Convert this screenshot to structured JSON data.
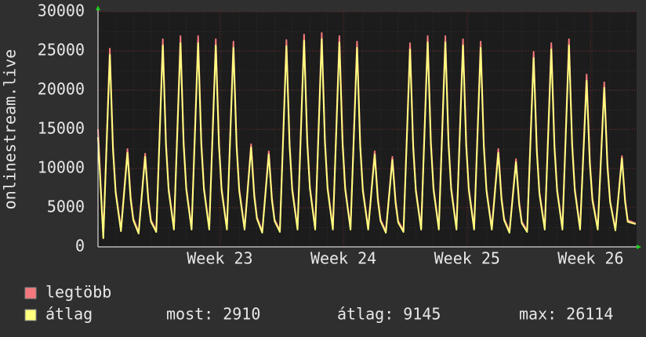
{
  "chart_data": {
    "type": "line",
    "y_label": "onlinestream.live",
    "x": [
      0,
      0.3,
      0.67,
      0.85,
      1,
      1.3,
      1.67,
      1.85,
      2,
      2.3,
      2.67,
      2.85,
      3,
      3.3,
      3.67,
      3.85,
      4,
      4.3,
      4.67,
      4.85,
      5,
      5.3,
      5.67,
      5.85,
      6,
      6.3,
      6.67,
      6.85,
      7,
      7.3,
      7.67,
      7.85,
      8,
      8.3,
      8.67,
      8.85,
      9,
      9.3,
      9.67,
      9.85,
      10,
      10.3,
      10.67,
      10.85,
      11,
      11.3,
      11.67,
      11.85,
      12,
      12.3,
      12.67,
      12.85,
      13,
      13.3,
      13.67,
      13.85,
      14,
      14.3,
      14.67,
      14.85,
      15,
      15.3,
      15.67,
      15.85,
      16,
      16.3,
      16.67,
      16.85,
      17,
      17.3,
      17.67,
      17.85,
      18,
      18.3,
      18.67,
      18.85,
      19,
      19.3,
      19.67,
      19.85,
      20,
      20.3,
      20.67,
      20.85,
      21,
      21.3,
      21.67,
      21.85,
      22,
      22.3,
      22.67,
      22.85,
      23,
      23.3,
      23.67,
      23.85,
      24,
      24.3,
      24.67,
      24.85,
      25,
      25.3,
      25.67,
      25.85,
      26,
      26.3,
      26.67,
      26.85,
      27,
      27.3,
      27.67,
      27.85,
      28,
      28.3,
      28.67,
      28.85,
      29,
      29.3,
      29.67,
      29.85,
      30,
      30.45
    ],
    "xlim": [
      0,
      30.5
    ],
    "xticks": [
      {
        "value": 6.9,
        "label": "Week 23"
      },
      {
        "value": 13.9,
        "label": "Week 24"
      },
      {
        "value": 20.9,
        "label": "Week 25"
      },
      {
        "value": 27.9,
        "label": "Week 26"
      }
    ],
    "ylim": [
      0,
      30000
    ],
    "yticks": [
      0,
      5000,
      10000,
      15000,
      20000,
      25000,
      30000
    ],
    "grid": true,
    "series": [
      {
        "name": "legtöbb",
        "color": "#f4787c",
        "values": [
          15000,
          1300,
          25300,
          12800,
          7200,
          2200,
          12500,
          6400,
          3600,
          1900,
          11900,
          6200,
          3400,
          2100,
          26500,
          13400,
          7500,
          2400,
          26900,
          13500,
          7600,
          2400,
          26900,
          13500,
          7600,
          2400,
          26500,
          13400,
          7500,
          2400,
          26200,
          13200,
          7400,
          2400,
          13100,
          6800,
          3800,
          2000,
          12200,
          6300,
          3500,
          2100,
          26400,
          13300,
          7500,
          2400,
          27100,
          13700,
          7700,
          2400,
          27300,
          13800,
          7700,
          2400,
          26900,
          13600,
          7600,
          2400,
          26200,
          13200,
          7400,
          2400,
          12200,
          6300,
          3500,
          2000,
          11500,
          6000,
          3300,
          2100,
          26000,
          13100,
          7400,
          2400,
          26900,
          13600,
          7600,
          2400,
          26900,
          13600,
          7600,
          2400,
          26500,
          13400,
          7500,
          2400,
          26200,
          13200,
          7400,
          2400,
          12500,
          6400,
          3600,
          2000,
          11200,
          5800,
          3200,
          2100,
          24900,
          12600,
          7000,
          2400,
          26000,
          13100,
          7400,
          2400,
          26500,
          13400,
          7500,
          2400,
          22000,
          11100,
          6200,
          2400,
          21000,
          10700,
          5900,
          2300,
          11600,
          6100,
          3400,
          3000
        ]
      },
      {
        "name": "átlag",
        "color": "#ffff80",
        "values": [
          14000,
          1100,
          24500,
          12300,
          6900,
          2000,
          12000,
          6000,
          3400,
          1700,
          11500,
          5800,
          3200,
          1900,
          25700,
          12900,
          7200,
          2200,
          26000,
          13000,
          7300,
          2200,
          26000,
          13000,
          7300,
          2200,
          25700,
          12900,
          7200,
          2200,
          25400,
          12700,
          7100,
          2200,
          12700,
          6400,
          3600,
          1800,
          11800,
          5900,
          3300,
          1900,
          25600,
          12800,
          7200,
          2200,
          26300,
          13200,
          7400,
          2200,
          26500,
          13300,
          7400,
          2200,
          26100,
          13100,
          7300,
          2200,
          25400,
          12700,
          7100,
          2200,
          11800,
          5900,
          3300,
          1800,
          11100,
          5600,
          3100,
          1900,
          25200,
          12600,
          7100,
          2200,
          26100,
          13100,
          7300,
          2200,
          26100,
          13100,
          7300,
          2200,
          25700,
          12900,
          7200,
          2200,
          25400,
          12700,
          7100,
          2200,
          12000,
          6000,
          3400,
          1800,
          10800,
          5400,
          3000,
          1900,
          24100,
          12100,
          6700,
          2200,
          25200,
          12600,
          7100,
          2200,
          25700,
          12900,
          7200,
          2200,
          21200,
          10600,
          5900,
          2200,
          20300,
          10200,
          5700,
          2100,
          11300,
          5700,
          3200,
          2910
        ]
      }
    ],
    "stats": [
      {
        "label": "most:",
        "value": 2910
      },
      {
        "label": "átlag:",
        "value": 9145
      },
      {
        "label": "max:",
        "value": 26114
      }
    ]
  }
}
